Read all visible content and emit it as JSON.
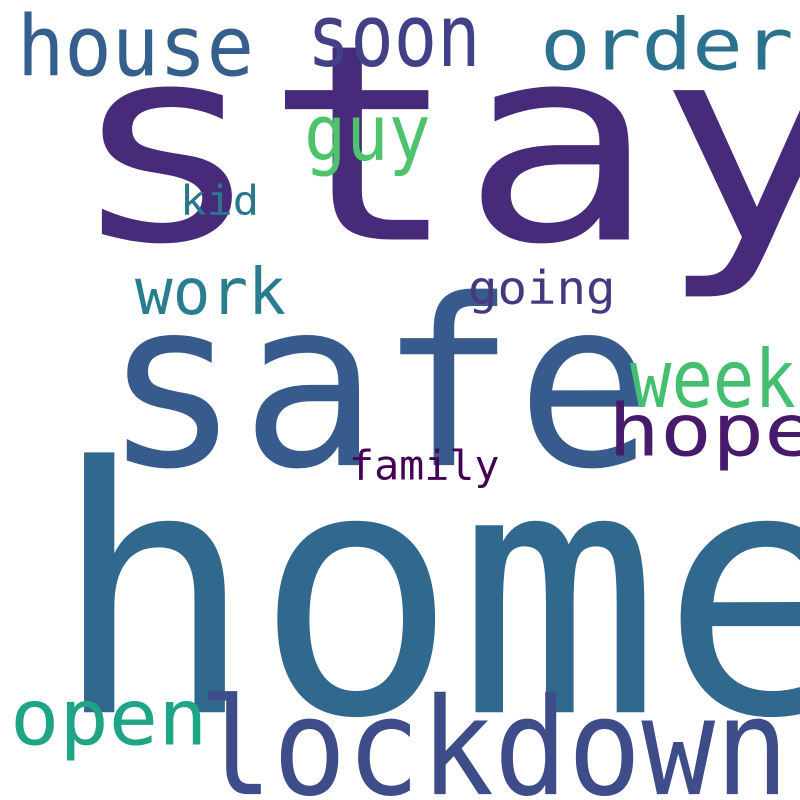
{
  "words": [
    {
      "text": "stay",
      "color": "#472a7a"
    },
    {
      "text": "home",
      "color": "#31688e"
    },
    {
      "text": "safe",
      "color": "#375b8d"
    },
    {
      "text": "lockdown",
      "color": "#3e4c8a"
    },
    {
      "text": "house",
      "color": "#355f8d"
    },
    {
      "text": "order",
      "color": "#2c728e"
    },
    {
      "text": "soon",
      "color": "#424086"
    },
    {
      "text": "guy",
      "color": "#4ec36b"
    },
    {
      "text": "kid",
      "color": "#2a788e"
    },
    {
      "text": "work",
      "color": "#287d8e"
    },
    {
      "text": "going",
      "color": "#443983"
    },
    {
      "text": "hope",
      "color": "#481a6c"
    },
    {
      "text": "week",
      "color": "#44bf70"
    },
    {
      "text": "family",
      "color": "#440154"
    },
    {
      "text": "open",
      "color": "#20a486"
    }
  ]
}
